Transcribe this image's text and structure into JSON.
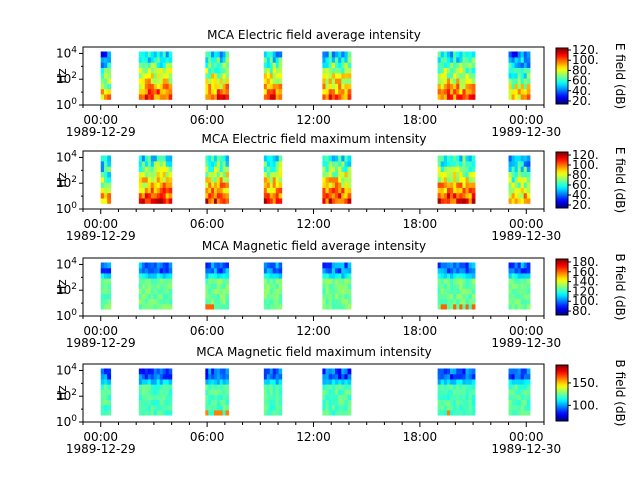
{
  "chart_data": [
    {
      "type": "heatmap",
      "title": "MCA  Electric field average intensity",
      "ylabel": "Hz",
      "colorbar_label": "E field (dB)",
      "colorbar_ticks": [
        "20.",
        "40.",
        "60.",
        "80.",
        "100.",
        "120."
      ],
      "colorbar_range": [
        14,
        124
      ],
      "quantity": "electric",
      "mode": "average",
      "y_ticks": [
        "10^0",
        "10^2",
        "10^4"
      ]
    },
    {
      "type": "heatmap",
      "title": "MCA  Electric field maximum intensity",
      "ylabel": "Hz",
      "colorbar_label": "E field (dB)",
      "colorbar_ticks": [
        "20.",
        "40.",
        "60.",
        "80.",
        "100.",
        "120."
      ],
      "colorbar_range": [
        14,
        126
      ],
      "quantity": "electric",
      "mode": "maximum",
      "y_ticks": [
        "10^0",
        "10^2",
        "10^4"
      ]
    },
    {
      "type": "heatmap",
      "title": "MCA  Magnetic field average intensity",
      "ylabel": "Hz",
      "colorbar_label": "B field (dB)",
      "colorbar_ticks": [
        "80.",
        "100.",
        "120.",
        "140.",
        "160.",
        "180."
      ],
      "colorbar_range": [
        72,
        186
      ],
      "quantity": "magnetic",
      "mode": "average",
      "y_ticks": [
        "10^0",
        "10^2",
        "10^4"
      ]
    },
    {
      "type": "heatmap",
      "title": "MCA  Magnetic field maximum intensity",
      "ylabel": "Hz",
      "colorbar_label": "B field (dB)",
      "colorbar_ticks": [
        "100.",
        "150."
      ],
      "colorbar_range": [
        65,
        190
      ],
      "quantity": "magnetic",
      "mode": "maximum",
      "y_ticks": [
        "10^0",
        "10^2",
        "10^4"
      ]
    }
  ],
  "x_axis": {
    "ticks": [
      "00:00",
      "06:00",
      "12:00",
      "18:00",
      "00:00"
    ],
    "start_date": "1989-12-29",
    "end_date": "1989-12-30",
    "range_hours": [
      -1,
      25
    ]
  },
  "data_intervals_hours": [
    [
      0.0,
      0.55
    ],
    [
      2.15,
      4.0
    ],
    [
      5.9,
      7.2
    ],
    [
      9.2,
      10.2
    ],
    [
      12.5,
      14.1
    ],
    [
      19.0,
      21.1
    ],
    [
      23.0,
      24.2
    ]
  ]
}
